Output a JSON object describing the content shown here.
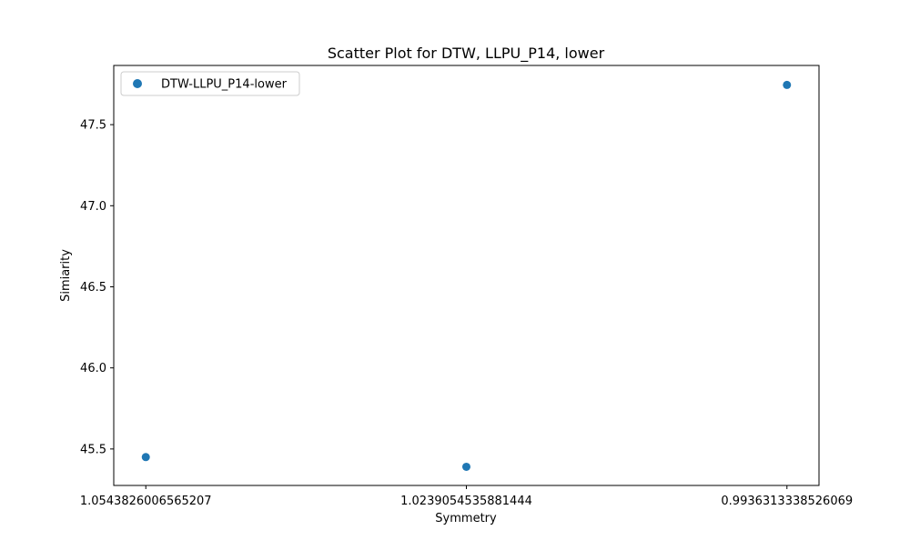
{
  "chart_data": {
    "type": "scatter",
    "title": "Scatter Plot for DTW, LLPU_P14, lower",
    "xlabel": "Symmetry",
    "ylabel": "Simiarity",
    "x_scale": "categorical",
    "categories": [
      "1.0543826006565207",
      "1.0239054535881444",
      "0.9936313338526069"
    ],
    "y_ticks": [
      "45.5",
      "46.0",
      "46.5",
      "47.0",
      "47.5"
    ],
    "ylim": [
      45.275,
      47.865
    ],
    "grid": false,
    "legend_location": "upper left",
    "series": [
      {
        "name": "DTW-LLPU_P14-lower",
        "color": "#1f77b4",
        "points": [
          {
            "x": "1.0543826006565207",
            "y": 45.45
          },
          {
            "x": "1.0239054535881444",
            "y": 45.39
          },
          {
            "x": "0.9936313338526069",
            "y": 47.745
          }
        ]
      }
    ]
  }
}
